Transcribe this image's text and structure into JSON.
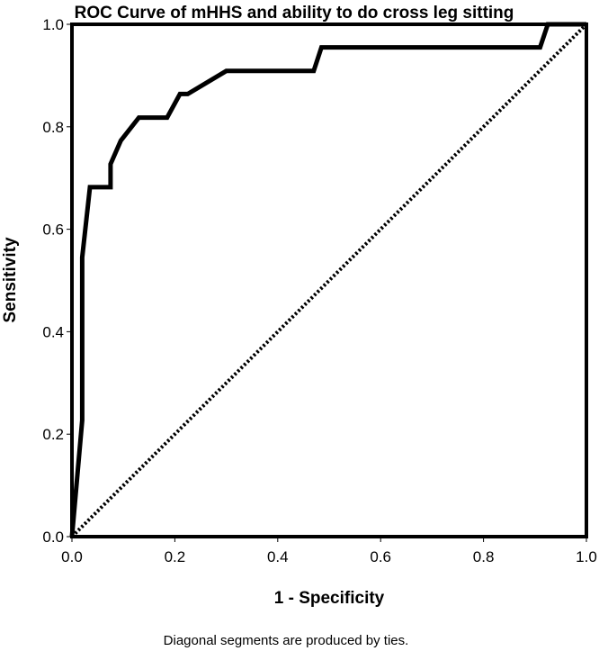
{
  "chart_data": {
    "type": "line",
    "title": "ROC Curve of mHHS and ability to do cross leg sitting",
    "xlabel": "1 - Specificity",
    "ylabel": "Sensitivity",
    "xlim": [
      0,
      1
    ],
    "ylim": [
      0,
      1
    ],
    "x_ticks": [
      "0.0",
      "0.2",
      "0.4",
      "0.6",
      "0.8",
      "1.0"
    ],
    "y_ticks": [
      "0.0",
      "0.2",
      "0.4",
      "0.6",
      "0.8",
      "1.0"
    ],
    "footnote": "Diagonal segments are produced by ties.",
    "grid": false,
    "series": [
      {
        "style": "solid",
        "color": "#000000",
        "x": [
          0.0,
          0.02,
          0.02,
          0.02,
          0.035,
          0.075,
          0.075,
          0.095,
          0.13,
          0.185,
          0.21,
          0.225,
          0.3,
          0.47,
          0.485,
          0.91,
          0.925,
          1.0
        ],
        "y": [
          0.0,
          0.227,
          0.545,
          0.545,
          0.682,
          0.682,
          0.727,
          0.773,
          0.818,
          0.818,
          0.864,
          0.864,
          0.909,
          0.909,
          0.955,
          0.955,
          1.0,
          1.0
        ]
      },
      {
        "style": "dotted",
        "color": "#000000",
        "x": [
          0,
          1
        ],
        "y": [
          0,
          1
        ]
      }
    ]
  }
}
